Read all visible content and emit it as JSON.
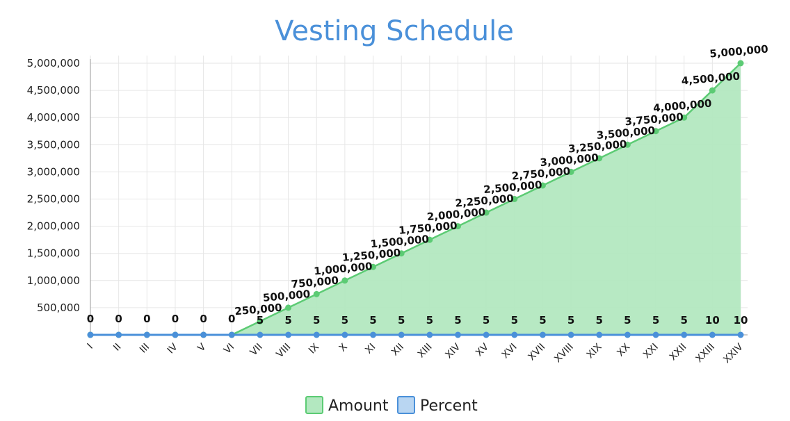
{
  "chart_data": {
    "type": "line",
    "title": "Vesting Schedule",
    "categories": [
      "I",
      "II",
      "III",
      "IV",
      "V",
      "VI",
      "VII",
      "VIII",
      "IX",
      "X",
      "XI",
      "XII",
      "XIII",
      "XIV",
      "XV",
      "XVI",
      "XVII",
      "XVIII",
      "XIX",
      "XX",
      "XXI",
      "XXII",
      "XXIII",
      "XXIV"
    ],
    "y_ticks": [
      "500,000",
      "1,000,000",
      "1,500,000",
      "2,000,000",
      "2,500,000",
      "3,000,000",
      "3,500,000",
      "4,000,000",
      "4,500,000",
      "5,000,000"
    ],
    "ylim": [
      0,
      5000000
    ],
    "grid": true,
    "legend_position": "bottom",
    "series": [
      {
        "name": "Amount",
        "kind": "area",
        "color": "#5ccb74",
        "fill_color": "#b3e8c0",
        "values": [
          0,
          0,
          0,
          0,
          0,
          0,
          250000,
          500000,
          750000,
          1000000,
          1250000,
          1500000,
          1750000,
          2000000,
          2250000,
          2500000,
          2750000,
          3000000,
          3250000,
          3500000,
          3750000,
          4000000,
          4500000,
          5000000
        ],
        "data_labels": [
          "0",
          "0",
          "0",
          "0",
          "0",
          "0",
          "250,000",
          "500,000",
          "750,000",
          "1,000,000",
          "1,250,000",
          "1,500,000",
          "1,750,000",
          "2,000,000",
          "2,250,000",
          "2,500,000",
          "2,750,000",
          "3,000,000",
          "3,250,000",
          "3,500,000",
          "3,750,000",
          "4,000,000",
          "4,500,000",
          "5,000,000"
        ]
      },
      {
        "name": "Percent",
        "kind": "line",
        "color": "#4a90d9",
        "fill_color": "#b9d6f2",
        "values": [
          0,
          0,
          0,
          0,
          0,
          0,
          5,
          5,
          5,
          5,
          5,
          5,
          5,
          5,
          5,
          5,
          5,
          5,
          5,
          5,
          5,
          5,
          10,
          10
        ],
        "data_labels": [
          "0",
          "0",
          "0",
          "0",
          "0",
          "0",
          "5",
          "5",
          "5",
          "5",
          "5",
          "5",
          "5",
          "5",
          "5",
          "5",
          "5",
          "5",
          "5",
          "5",
          "5",
          "5",
          "10",
          "10"
        ]
      }
    ]
  }
}
